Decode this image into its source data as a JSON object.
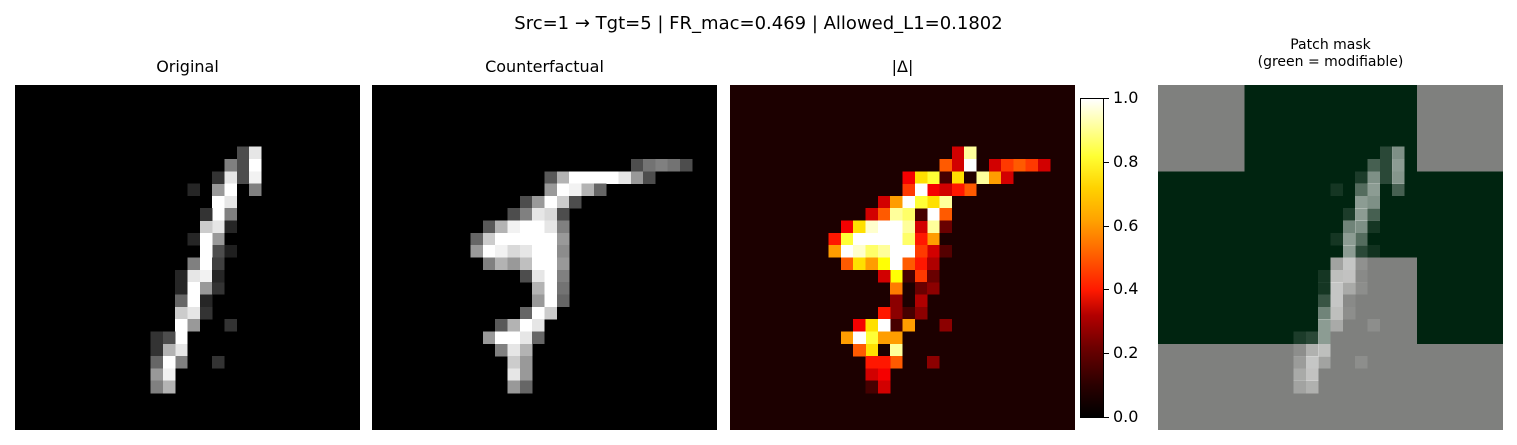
{
  "figure": {
    "title": "Src=1 → Tgt=5 | FR_mac=0.469 | Allowed_L1=0.1802"
  },
  "panels": [
    {
      "id": "original",
      "title": "Original"
    },
    {
      "id": "counterfactual",
      "title": "Counterfactual"
    },
    {
      "id": "delta",
      "title": "|Δ|"
    },
    {
      "id": "mask",
      "title": "Patch mask",
      "subtitle": "(green = modifiable)"
    }
  ],
  "chart_data": [
    {
      "type": "heatmap",
      "title": "Original",
      "grid_size": [
        28,
        28
      ],
      "colormap": "gray",
      "range": [
        0,
        1
      ],
      "cells": [
        [
          5,
          18,
          0.3
        ],
        [
          6,
          18,
          0.3
        ],
        [
          7,
          18,
          0.3
        ],
        [
          5,
          19,
          0.9
        ],
        [
          6,
          19,
          1.0
        ],
        [
          7,
          19,
          0.95
        ],
        [
          8,
          19,
          0.5
        ],
        [
          6,
          17,
          0.5
        ],
        [
          7,
          17,
          0.9
        ],
        [
          8,
          17,
          1.0
        ],
        [
          9,
          17,
          0.9
        ],
        [
          10,
          17,
          0.5
        ],
        [
          8,
          16,
          0.6
        ],
        [
          9,
          16,
          1.0
        ],
        [
          10,
          16,
          1.0
        ],
        [
          11,
          16,
          0.9
        ],
        [
          12,
          16,
          0.6
        ],
        [
          13,
          16,
          0.3
        ],
        [
          11,
          15,
          0.8
        ],
        [
          12,
          15,
          1.0
        ],
        [
          13,
          15,
          1.0
        ],
        [
          14,
          15,
          1.0
        ],
        [
          15,
          15,
          0.95
        ],
        [
          16,
          15,
          0.6
        ],
        [
          14,
          14,
          0.5
        ],
        [
          15,
          14,
          0.9
        ],
        [
          16,
          14,
          1.0
        ],
        [
          17,
          14,
          1.0
        ],
        [
          18,
          14,
          0.9
        ],
        [
          19,
          14,
          0.6
        ],
        [
          17,
          13,
          0.4
        ],
        [
          18,
          13,
          0.8
        ],
        [
          19,
          13,
          1.0
        ],
        [
          20,
          13,
          1.0
        ],
        [
          21,
          13,
          0.9
        ],
        [
          22,
          13,
          0.5
        ],
        [
          20,
          12,
          0.3
        ],
        [
          21,
          12,
          0.7
        ],
        [
          22,
          12,
          1.0
        ],
        [
          23,
          12,
          0.95
        ],
        [
          24,
          12,
          0.7
        ],
        [
          21,
          11,
          0.2
        ],
        [
          22,
          11,
          0.4
        ],
        [
          23,
          11,
          0.6
        ],
        [
          24,
          11,
          0.5
        ],
        [
          22,
          16,
          0.2
        ],
        [
          19,
          17,
          0.2
        ],
        [
          16,
          16,
          0.2
        ],
        [
          8,
          14,
          0.15
        ],
        [
          17,
          15,
          0.15
        ],
        [
          18,
          15,
          0.2
        ],
        [
          12,
          14,
          0.15
        ],
        [
          20,
          11,
          0.2
        ],
        [
          16,
          13,
          0.15
        ],
        [
          10,
          15,
          0.2
        ],
        [
          7,
          16,
          0.2
        ],
        [
          15,
          13,
          0.15
        ],
        [
          13,
          17,
          0.12
        ],
        [
          14,
          16,
          0.25
        ],
        [
          15,
          16,
          0.15
        ],
        [
          11,
          17,
          0.15
        ]
      ]
    },
    {
      "type": "heatmap",
      "title": "Counterfactual",
      "grid_size": [
        28,
        28
      ],
      "colormap": "gray",
      "range": [
        0,
        1
      ]
    },
    {
      "type": "heatmap",
      "title": "|Δ|",
      "grid_size": [
        28,
        28
      ],
      "colormap": "hot",
      "range": [
        0,
        1
      ],
      "colorbar": {
        "range": [
          0,
          1
        ],
        "ticks": [
          "0.0",
          "0.2",
          "0.4",
          "0.6",
          "0.8",
          "1.0"
        ]
      }
    },
    {
      "type": "heatmap",
      "title": "Patch mask",
      "subtitle": "(green = modifiable)",
      "grid_size": [
        4,
        4
      ],
      "mask": [
        [
          0,
          1,
          1,
          0
        ],
        [
          1,
          1,
          1,
          1
        ],
        [
          1,
          1,
          0,
          1
        ],
        [
          0,
          0,
          0,
          0
        ]
      ],
      "colors": {
        "modifiable": "#002410",
        "fixed": "#7f807e"
      }
    }
  ]
}
